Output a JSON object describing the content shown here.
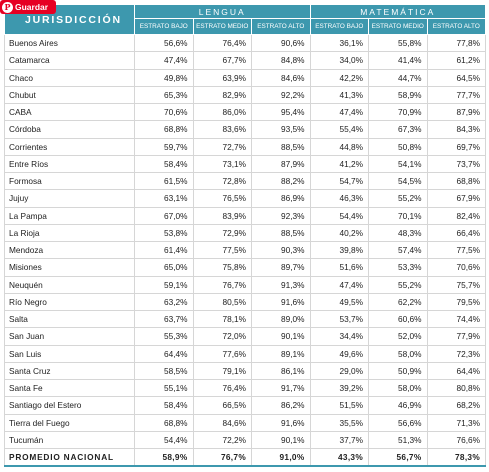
{
  "pin_button": {
    "label": "Guardar",
    "icon": "pinterest-icon",
    "color": "#e60023"
  },
  "table": {
    "header_color": "#3d98ae",
    "jurisdiction_header": "JURISDICCIÓN",
    "groups": [
      "LENGUA",
      "MATEMÁTICA"
    ],
    "subheaders": [
      "ESTRATO BAJO",
      "ESTRATO MEDIO",
      "ESTRATO ALTO",
      "ESTRATO BAJO",
      "ESTRATO MEDIO",
      "ESTRATO ALTO"
    ],
    "rows": [
      {
        "name": "Buenos Aires",
        "values": [
          "56,6%",
          "76,4%",
          "90,6%",
          "36,1%",
          "55,8%",
          "77,8%"
        ]
      },
      {
        "name": "Catamarca",
        "values": [
          "47,4%",
          "67,7%",
          "84,8%",
          "34,0%",
          "41,4%",
          "61,2%"
        ]
      },
      {
        "name": "Chaco",
        "values": [
          "49,8%",
          "63,9%",
          "84,6%",
          "42,2%",
          "44,7%",
          "64,5%"
        ]
      },
      {
        "name": "Chubut",
        "values": [
          "65,3%",
          "82,9%",
          "92,2%",
          "41,3%",
          "58,9%",
          "77,7%"
        ]
      },
      {
        "name": "CABA",
        "values": [
          "70,6%",
          "86,0%",
          "95,4%",
          "47,4%",
          "70,9%",
          "87,9%"
        ]
      },
      {
        "name": "Córdoba",
        "values": [
          "68,8%",
          "83,6%",
          "93,5%",
          "55,4%",
          "67,3%",
          "84,3%"
        ]
      },
      {
        "name": "Corrientes",
        "values": [
          "59,7%",
          "72,7%",
          "88,5%",
          "44,8%",
          "50,8%",
          "69,7%"
        ]
      },
      {
        "name": "Entre Ríos",
        "values": [
          "58,4%",
          "73,1%",
          "87,9%",
          "41,2%",
          "54,1%",
          "73,7%"
        ]
      },
      {
        "name": "Formosa",
        "values": [
          "61,5%",
          "72,8%",
          "88,2%",
          "54,7%",
          "54,5%",
          "68,8%"
        ]
      },
      {
        "name": "Jujuy",
        "values": [
          "63,1%",
          "76,5%",
          "86,9%",
          "46,3%",
          "55,2%",
          "67,9%"
        ]
      },
      {
        "name": "La Pampa",
        "values": [
          "67,0%",
          "83,9%",
          "92,3%",
          "54,4%",
          "70,1%",
          "82,4%"
        ]
      },
      {
        "name": "La Rioja",
        "values": [
          "53,8%",
          "72,9%",
          "88,5%",
          "40,2%",
          "48,3%",
          "66,4%"
        ]
      },
      {
        "name": "Mendoza",
        "values": [
          "61,4%",
          "77,5%",
          "90,3%",
          "39,8%",
          "57,4%",
          "77,5%"
        ]
      },
      {
        "name": "Misiones",
        "values": [
          "65,0%",
          "75,8%",
          "89,7%",
          "51,6%",
          "53,3%",
          "70,6%"
        ]
      },
      {
        "name": "Neuquén",
        "values": [
          "59,1%",
          "76,7%",
          "91,3%",
          "47,4%",
          "55,2%",
          "75,7%"
        ]
      },
      {
        "name": "Río Negro",
        "values": [
          "63,2%",
          "80,5%",
          "91,6%",
          "49,5%",
          "62,2%",
          "79,5%"
        ]
      },
      {
        "name": "Salta",
        "values": [
          "63,7%",
          "78,1%",
          "89,0%",
          "53,7%",
          "60,6%",
          "74,4%"
        ]
      },
      {
        "name": "San Juan",
        "values": [
          "55,3%",
          "72,0%",
          "90,1%",
          "34,4%",
          "52,0%",
          "77,9%"
        ]
      },
      {
        "name": "San Luis",
        "values": [
          "64,4%",
          "77,6%",
          "89,1%",
          "49,6%",
          "58,0%",
          "72,3%"
        ]
      },
      {
        "name": "Santa Cruz",
        "values": [
          "58,5%",
          "79,1%",
          "86,1%",
          "29,0%",
          "50,9%",
          "64,4%"
        ]
      },
      {
        "name": "Santa Fe",
        "values": [
          "55,1%",
          "76,4%",
          "91,7%",
          "39,2%",
          "58,0%",
          "80,8%"
        ]
      },
      {
        "name": "Santiago del Estero",
        "values": [
          "58,4%",
          "66,5%",
          "86,2%",
          "51,5%",
          "46,9%",
          "68,2%"
        ]
      },
      {
        "name": "Tierra del Fuego",
        "values": [
          "68,8%",
          "84,6%",
          "91,6%",
          "35,5%",
          "56,6%",
          "71,3%"
        ]
      },
      {
        "name": "Tucumán",
        "values": [
          "54,4%",
          "72,2%",
          "90,1%",
          "37,7%",
          "51,3%",
          "76,6%"
        ]
      }
    ],
    "total": {
      "name": "PROMEDIO NACIONAL",
      "values": [
        "58,9%",
        "76,7%",
        "91,0%",
        "43,3%",
        "56,7%",
        "78,3%"
      ]
    }
  }
}
